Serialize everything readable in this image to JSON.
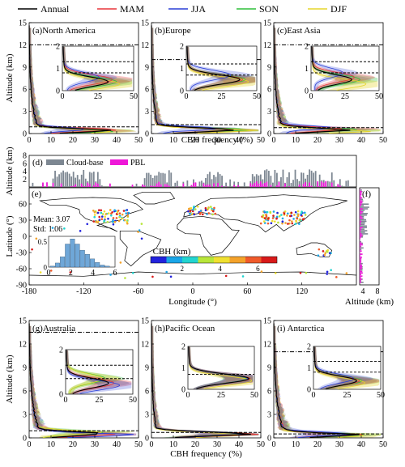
{
  "legend": {
    "entries": [
      {
        "name": "Annual",
        "color": "#000000"
      },
      {
        "name": "MAM",
        "color": "#e8353a"
      },
      {
        "name": "JJA",
        "color": "#2a3fd6"
      },
      {
        "name": "SON",
        "color": "#2fbf3a"
      },
      {
        "name": "DJF",
        "color": "#e6d52b"
      }
    ]
  },
  "chart_data": [
    {
      "type": "line",
      "panel": "(a)North America",
      "ylabel": "Altitude (km)",
      "xlim": [
        0,
        50
      ],
      "ylim": [
        0,
        15
      ],
      "xticks": [
        "0",
        "10",
        "20",
        "30",
        "40",
        "50"
      ],
      "yticks": [
        "0",
        "3",
        "6",
        "9",
        "12",
        "15"
      ],
      "upper_dashdot": 12,
      "lower_dashed": 0.9,
      "series": [
        {
          "name": "Annual",
          "peak": 30,
          "peak_alt": 0.4
        },
        {
          "name": "MAM",
          "peak": 33,
          "peak_alt": 0.5
        },
        {
          "name": "JJA",
          "peak": 24,
          "peak_alt": 0.6
        },
        {
          "name": "SON",
          "peak": 36,
          "peak_alt": 0.4
        },
        {
          "name": "DJF",
          "peak": 38,
          "peak_alt": 0.3
        }
      ],
      "inset": {
        "xlim": [
          0,
          50
        ],
        "ylim": [
          0,
          2
        ],
        "xticks": [
          "0",
          "25",
          "50"
        ],
        "yticks": [
          "0",
          "1",
          "2"
        ],
        "upper_dashed": 1.3,
        "lower_dashed": 0.8
      }
    },
    {
      "type": "line",
      "panel": "(b)Europe",
      "xlim": [
        0,
        50
      ],
      "ylim": [
        0,
        15
      ],
      "xticks": [
        "0",
        "10",
        "20",
        "30",
        "40",
        "50"
      ],
      "yticks": [
        "0",
        "3",
        "6",
        "9",
        "12",
        "15"
      ],
      "upper_dashdot": 10,
      "lower_dashed": 1.2,
      "series": [
        {
          "name": "Annual",
          "peak": 36,
          "peak_alt": 0.5
        },
        {
          "name": "MAM",
          "peak": 38,
          "peak_alt": 0.5
        },
        {
          "name": "JJA",
          "peak": 30,
          "peak_alt": 0.7
        },
        {
          "name": "SON",
          "peak": 40,
          "peak_alt": 0.5
        },
        {
          "name": "DJF",
          "peak": 42,
          "peak_alt": 0.4
        }
      ],
      "inset": {
        "xlim": [
          0,
          50
        ],
        "ylim": [
          0,
          2
        ],
        "xticks": [
          "0",
          "25",
          "50"
        ],
        "yticks": [
          "0",
          "1",
          "2"
        ],
        "upper_dashed": 1.2,
        "lower_dashed": 0.7
      }
    },
    {
      "type": "line",
      "panel": "(c)East Asia",
      "xlim": [
        0,
        50
      ],
      "ylim": [
        0,
        15
      ],
      "xticks": [
        "0",
        "10",
        "20",
        "30",
        "40",
        "50"
      ],
      "yticks": [
        "0",
        "3",
        "6",
        "9",
        "12",
        "15"
      ],
      "upper_dashdot": 12,
      "lower_dashed": 0.8,
      "series": [
        {
          "name": "Annual",
          "peak": 28,
          "peak_alt": 0.5
        },
        {
          "name": "MAM",
          "peak": 30,
          "peak_alt": 0.6
        },
        {
          "name": "JJA",
          "peak": 22,
          "peak_alt": 0.8
        },
        {
          "name": "SON",
          "peak": 34,
          "peak_alt": 0.5
        },
        {
          "name": "DJF",
          "peak": 38,
          "peak_alt": 0.3
        }
      ],
      "inset": {
        "xlim": [
          0,
          50
        ],
        "ylim": [
          0,
          2
        ],
        "xticks": [
          "0",
          "25",
          "50"
        ],
        "yticks": [
          "0",
          "1",
          "2"
        ],
        "upper_dashed": 1.3,
        "lower_dashed": 0.8
      }
    },
    {
      "type": "bar",
      "panel": "(d)",
      "ylabel": "Altitude (km)",
      "ylim": [
        0,
        8
      ],
      "yticks": [
        "2",
        "4",
        "6",
        "8"
      ],
      "legend": [
        "Cloud-base",
        "PBL"
      ],
      "colors": {
        "cloud_base": "#7d8792",
        "pbl": "#ee18d8"
      }
    },
    {
      "type": "scatter",
      "panel": "(e)",
      "xlabel": "Longitude (°)",
      "ylabel": "Latitude (°)",
      "xlim": [
        -180,
        180
      ],
      "ylim": [
        -90,
        90
      ],
      "xticks": [
        "-180",
        "-120",
        "-60",
        "0",
        "60",
        "120"
      ],
      "yticks": [
        "-90",
        "-60",
        "-30",
        "0",
        "30",
        "60"
      ],
      "mean_label": "Mean: 3.07",
      "std_label": "Std: 1.06",
      "colorbar": {
        "label": "CBH (km)",
        "ticks": [
          "2",
          "4",
          "6"
        ],
        "colors": [
          "#2222dd",
          "#1aa6e8",
          "#22d4d0",
          "#b8e63a",
          "#f0e030",
          "#f4a22a",
          "#f05a2a",
          "#d81a1a"
        ]
      },
      "histogram": {
        "xticks": [
          "0",
          "2",
          "4",
          "6"
        ],
        "yticks": [
          "0",
          "0.5"
        ],
        "values": [
          0.02,
          0.08,
          0.2,
          0.45,
          0.55,
          0.45,
          0.33,
          0.25,
          0.16,
          0.09,
          0.04,
          0.02
        ]
      }
    },
    {
      "type": "line",
      "panel": "(f)",
      "xlabel": "Altitude (km)",
      "xticks": [
        "4",
        "8"
      ]
    },
    {
      "type": "line",
      "panel": "(g)Australia",
      "ylabel": "Altitude (km)",
      "xlabel": "",
      "xlim": [
        0,
        50
      ],
      "ylim": [
        0,
        15
      ],
      "xticks": [
        "0",
        "10",
        "20",
        "30",
        "40",
        "50"
      ],
      "yticks": [
        "0",
        "3",
        "6",
        "9",
        "12",
        "15"
      ],
      "upper_dashdot": 13.5,
      "lower_dashed": 0.9,
      "series": [
        {
          "name": "Annual",
          "peak": 30,
          "peak_alt": 0.5
        },
        {
          "name": "MAM",
          "peak": 34,
          "peak_alt": 0.5
        },
        {
          "name": "JJA",
          "peak": 38,
          "peak_alt": 0.4
        },
        {
          "name": "SON",
          "peak": 28,
          "peak_alt": 0.7
        },
        {
          "name": "DJF",
          "peak": 26,
          "peak_alt": 0.7
        }
      ],
      "inset": {
        "xlim": [
          0,
          50
        ],
        "ylim": [
          0,
          2
        ],
        "xticks": [
          "0",
          "25",
          "50"
        ],
        "yticks": [
          "0",
          "1",
          "2"
        ],
        "upper_dashed": 1.3,
        "lower_dashed": 0.7
      }
    },
    {
      "type": "line",
      "panel": "(h)Pacific Ocean",
      "xlabel": "CBH frequency (%)",
      "xlim": [
        0,
        50
      ],
      "ylim": [
        0,
        15
      ],
      "xticks": [
        "0",
        "10",
        "20",
        "30",
        "40",
        "50"
      ],
      "yticks": [
        "0",
        "3",
        "6",
        "9",
        "12",
        "15"
      ],
      "lower_dashed": 0.7,
      "series": [
        {
          "name": "Annual",
          "peak": 44,
          "peak_alt": 0.5
        },
        {
          "name": "MAM",
          "peak": 45,
          "peak_alt": 0.5
        },
        {
          "name": "JJA",
          "peak": 43,
          "peak_alt": 0.5
        },
        {
          "name": "SON",
          "peak": 42,
          "peak_alt": 0.5
        },
        {
          "name": "DJF",
          "peak": 46,
          "peak_alt": 0.4
        }
      ],
      "inset": {
        "xlim": [
          0,
          50
        ],
        "ylim": [
          0,
          2
        ],
        "xticks": [
          "0",
          "25",
          "50"
        ],
        "yticks": [
          "0",
          "1",
          "2"
        ],
        "upper_dashed": 0,
        "lower_dashed": 0.7
      }
    },
    {
      "type": "line",
      "panel": "(i) Antarctica",
      "xlabel": "",
      "xlim": [
        0,
        50
      ],
      "ylim": [
        0,
        15
      ],
      "xticks": [
        "0",
        "10",
        "20",
        "30",
        "40",
        "50"
      ],
      "yticks": [
        "0",
        "3",
        "6",
        "9",
        "12",
        "15"
      ],
      "upper_dashdot": 11,
      "lower_dashed": 0.5,
      "series": [
        {
          "name": "Annual",
          "peak": 30,
          "peak_alt": 0.4
        },
        {
          "name": "MAM",
          "peak": 32,
          "peak_alt": 0.4
        },
        {
          "name": "JJA",
          "peak": 28,
          "peak_alt": 0.5
        },
        {
          "name": "SON",
          "peak": 34,
          "peak_alt": 0.4
        },
        {
          "name": "DJF",
          "peak": 36,
          "peak_alt": 0.3
        }
      ],
      "inset": {
        "xlim": [
          0,
          50
        ],
        "ylim": [
          0,
          2
        ],
        "xticks": [
          "0",
          "25",
          "50"
        ],
        "yticks": [
          "0",
          "1",
          "2"
        ],
        "upper_dashed": 1.3,
        "lower_dashed": 0.8
      }
    }
  ],
  "top_xlabel": "CBH frequency (%)"
}
